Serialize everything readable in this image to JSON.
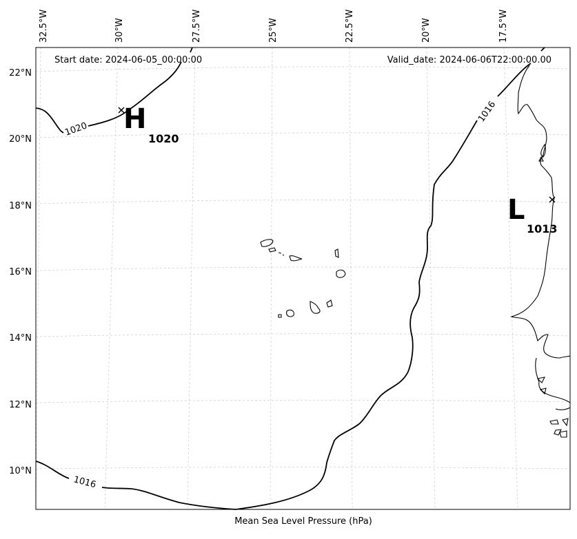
{
  "header": {
    "start_date": "Start date: 2024-06-05_00:00:00",
    "valid_date": "Valid_date: 2024-06-06T22:00:00.00"
  },
  "footer": {
    "caption": "Mean Sea Level Pressure (hPa)"
  },
  "axes": {
    "lon_labels": [
      "32.5°W",
      "30°W",
      "27.5°W",
      "25°W",
      "22.5°W",
      "20°W",
      "17.5°W"
    ],
    "lat_labels": [
      "22°N",
      "20°N",
      "18°N",
      "16°N",
      "14°N",
      "12°N",
      "10°N"
    ]
  },
  "pressure_centers": [
    {
      "symbol": "H",
      "value": "1020",
      "lon": -29.9,
      "lat": 20.85
    },
    {
      "symbol": "L",
      "value": "1013",
      "lon": -16.3,
      "lat": 18.2
    }
  ],
  "isobar_labels": [
    {
      "text": "1020"
    },
    {
      "text": "1016"
    },
    {
      "text": "1016"
    }
  ]
}
